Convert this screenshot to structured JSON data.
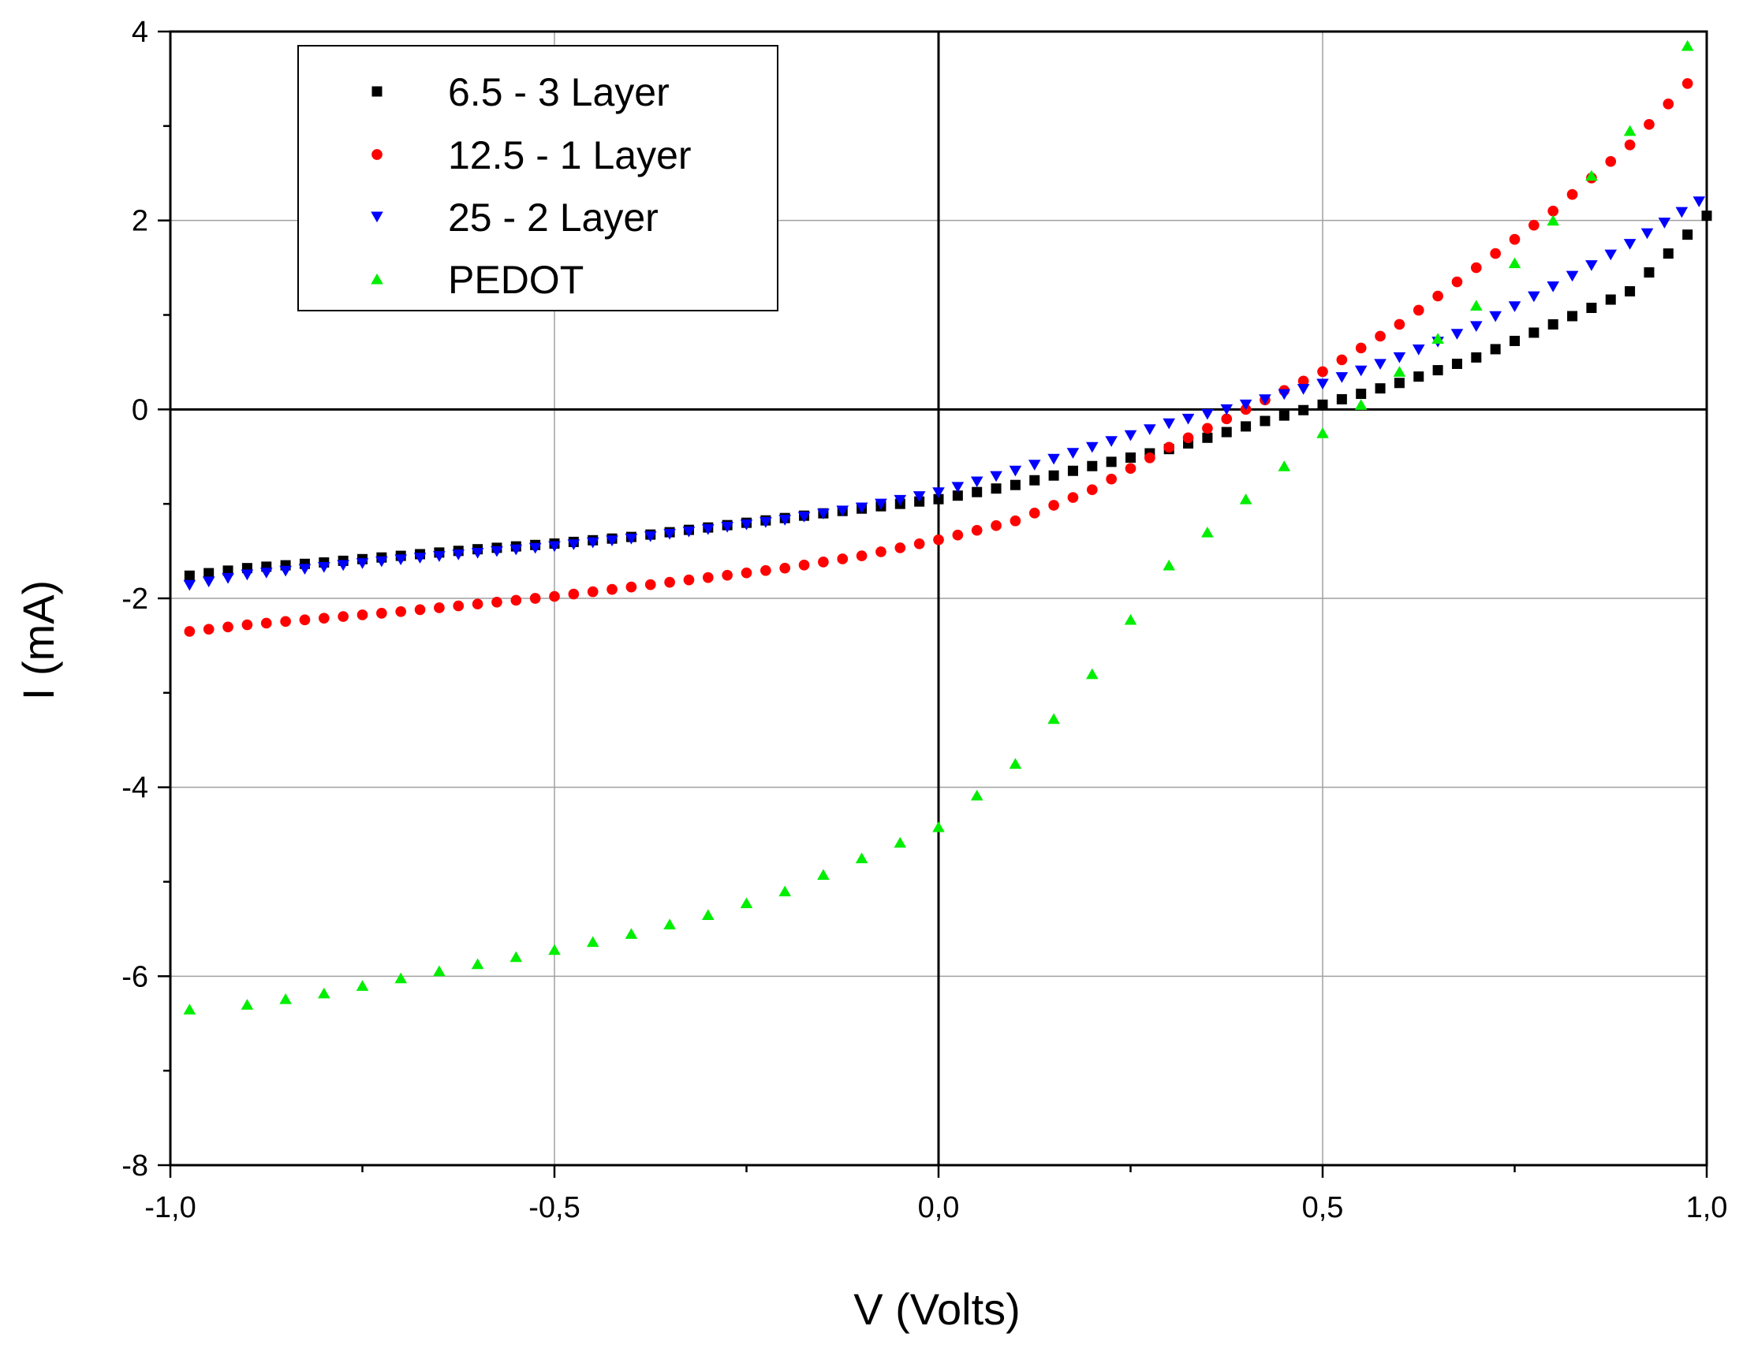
{
  "chart_data": {
    "type": "scatter",
    "title": "",
    "xlabel": "V (Volts)",
    "ylabel": "I (mA)",
    "xlim": [
      -1.0,
      1.0
    ],
    "ylim": [
      -8,
      4
    ],
    "x_ticks": [
      -1.0,
      -0.5,
      0.0,
      0.5,
      1.0
    ],
    "x_tick_labels": [
      "-1,0",
      "-0,5",
      "0,0",
      "0,5",
      "1,0"
    ],
    "y_ticks": [
      -8,
      -6,
      -4,
      -2,
      0,
      2,
      4
    ],
    "y_tick_labels": [
      "-8",
      "-6",
      "-4",
      "-2",
      "0",
      "2",
      "4"
    ],
    "grid": true,
    "legend_position": "top-left",
    "series": [
      {
        "name": "6.5 - 3 Layer",
        "marker": "square",
        "color": "#000000",
        "x": [
          -0.975,
          -0.9,
          -0.8,
          -0.7,
          -0.6,
          -0.5,
          -0.4,
          -0.3,
          -0.2,
          -0.1,
          0.0,
          0.1,
          0.2,
          0.3,
          0.4,
          0.5,
          0.6,
          0.7,
          0.8,
          0.9,
          1.0
        ],
        "y": [
          -1.76,
          -1.68,
          -1.62,
          -1.55,
          -1.48,
          -1.42,
          -1.35,
          -1.25,
          -1.15,
          -1.05,
          -0.95,
          -0.8,
          -0.6,
          -0.42,
          -0.18,
          0.05,
          0.28,
          0.55,
          0.9,
          1.25,
          2.05
        ]
      },
      {
        "name": "12.5 - 1 Layer",
        "marker": "circle",
        "color": "#ff0000",
        "x": [
          -0.975,
          -0.9,
          -0.8,
          -0.7,
          -0.6,
          -0.5,
          -0.4,
          -0.3,
          -0.2,
          -0.1,
          0.0,
          0.1,
          0.2,
          0.3,
          0.4,
          0.5,
          0.6,
          0.7,
          0.8,
          0.9,
          0.975
        ],
        "y": [
          -2.35,
          -2.28,
          -2.21,
          -2.14,
          -2.06,
          -1.98,
          -1.88,
          -1.78,
          -1.68,
          -1.55,
          -1.38,
          -1.18,
          -0.85,
          -0.4,
          0.0,
          0.4,
          0.9,
          1.5,
          2.1,
          2.8,
          3.45
        ]
      },
      {
        "name": "25 - 2 Layer",
        "marker": "triangle-down",
        "color": "#0000ff",
        "x": [
          -0.975,
          -0.9,
          -0.8,
          -0.7,
          -0.6,
          -0.5,
          -0.4,
          -0.3,
          -0.2,
          -0.1,
          0.0,
          0.1,
          0.2,
          0.3,
          0.4,
          0.5,
          0.6,
          0.7,
          0.8,
          0.9,
          0.99
        ],
        "y": [
          -1.86,
          -1.75,
          -1.67,
          -1.59,
          -1.52,
          -1.45,
          -1.37,
          -1.27,
          -1.17,
          -1.04,
          -0.88,
          -0.65,
          -0.4,
          -0.15,
          0.05,
          0.27,
          0.55,
          0.88,
          1.3,
          1.75,
          2.2
        ]
      },
      {
        "name": "PEDOT",
        "marker": "triangle-up",
        "color": "#00ee00",
        "x": [
          -0.975,
          -0.9,
          -0.8,
          -0.7,
          -0.6,
          -0.5,
          -0.4,
          -0.3,
          -0.2,
          -0.1,
          0.0,
          0.1,
          0.2,
          0.3,
          0.4,
          0.5,
          0.55,
          0.6,
          0.7,
          0.8,
          0.9,
          0.975
        ],
        "y": [
          -6.35,
          -6.3,
          -6.18,
          -6.02,
          -5.87,
          -5.72,
          -5.55,
          -5.35,
          -5.1,
          -4.75,
          -4.42,
          -3.75,
          -2.8,
          -1.65,
          -0.95,
          -0.25,
          0.05,
          0.4,
          1.1,
          2.0,
          2.95,
          3.85
        ]
      }
    ]
  }
}
